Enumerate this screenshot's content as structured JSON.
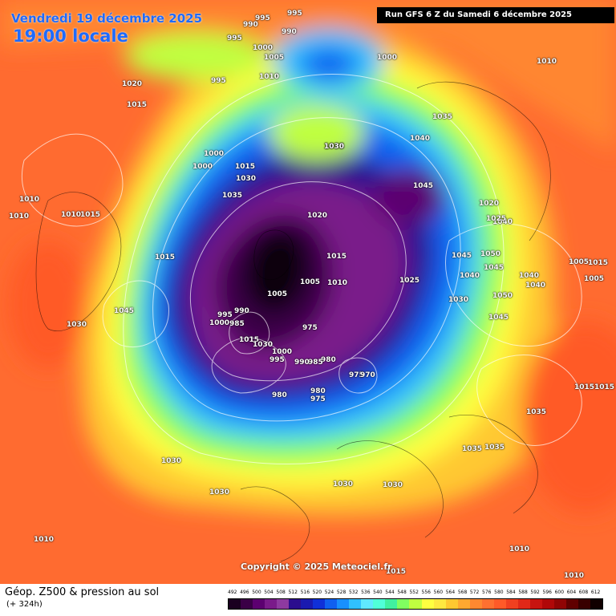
{
  "header": {
    "date": "Vendredi 19 décembre 2025",
    "time": "19:00 locale",
    "run": "Run GFS 6 Z du Samedi 6 décembre 2025"
  },
  "copyright": "Copyright © 2025 Meteociel.fr",
  "footer": {
    "title": "Géop. Z500 & pression au sol",
    "subtitle": "(+ 324h)"
  },
  "legend": {
    "values": [
      "492",
      "496",
      "500",
      "504",
      "508",
      "512",
      "516",
      "520",
      "524",
      "528",
      "532",
      "536",
      "540",
      "544",
      "548",
      "552",
      "556",
      "560",
      "564",
      "568",
      "572",
      "576",
      "580",
      "584",
      "588",
      "592",
      "596",
      "600",
      "604",
      "608",
      "612"
    ],
    "colors": [
      "#1a0020",
      "#3a0046",
      "#5c0070",
      "#7a1a8a",
      "#8e3aa0",
      "#2b0d8e",
      "#1a1ab0",
      "#1030d8",
      "#1060f0",
      "#1890ff",
      "#30c0ff",
      "#60e8ff",
      "#50ffd8",
      "#40f0a0",
      "#80ff60",
      "#c0ff40",
      "#ffff40",
      "#ffe840",
      "#ffc830",
      "#ffa830",
      "#ff8830",
      "#ff7030",
      "#ff5a28",
      "#f04020",
      "#e02818",
      "#c81410",
      "#b00808",
      "#900404",
      "#600000",
      "#380000",
      "#100000"
    ]
  },
  "pressure_labels": [
    "995",
    "990",
    "995",
    "990",
    "995",
    "1000",
    "1005",
    "1000",
    "1010",
    "995",
    "1020",
    "1015",
    "1000",
    "1000",
    "1015",
    "1030",
    "1035",
    "1010",
    "1010",
    "1010",
    "1015",
    "1020",
    "1015",
    "1005",
    "1015",
    "1035",
    "1045",
    "1040",
    "1030",
    "995",
    "990",
    "985",
    "1000",
    "1005",
    "1010",
    "1015",
    "1030",
    "1025",
    "1030",
    "1035",
    "1040",
    "1045",
    "1050",
    "1045",
    "1020",
    "1025",
    "1040",
    "1045",
    "1050",
    "1040",
    "1040",
    "1005",
    "1015",
    "1005",
    "975",
    "980",
    "985",
    "990",
    "995",
    "1000",
    "1030",
    "1030",
    "1030",
    "1010",
    "1010",
    "1030",
    "1035",
    "1035",
    "1015",
    "1015",
    "1035",
    "1045",
    "975",
    "970",
    "980",
    "980",
    "975",
    "1030",
    "1010",
    "1015",
    "1010"
  ]
}
